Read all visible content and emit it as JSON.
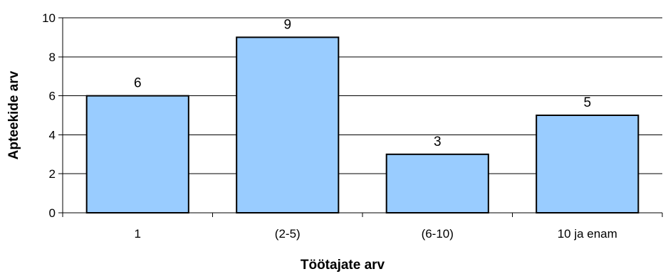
{
  "chart_data": {
    "type": "bar",
    "categories": [
      "1",
      "(2-5)",
      "(6-10)",
      "10 ja enam"
    ],
    "values": [
      6,
      9,
      3,
      5
    ],
    "data_labels": [
      "6",
      "9",
      "3",
      "5"
    ],
    "title": "",
    "xlabel": "Töötajate arv",
    "ylabel": "Apteekide arv",
    "ylim": [
      0,
      10
    ],
    "yticks": [
      0,
      2,
      4,
      6,
      8,
      10
    ],
    "grid": true,
    "legend": "none",
    "colors": {
      "bar_fill": "#99ccff",
      "bar_stroke": "#000000",
      "grid": "#000000",
      "axis": "#000000"
    }
  }
}
